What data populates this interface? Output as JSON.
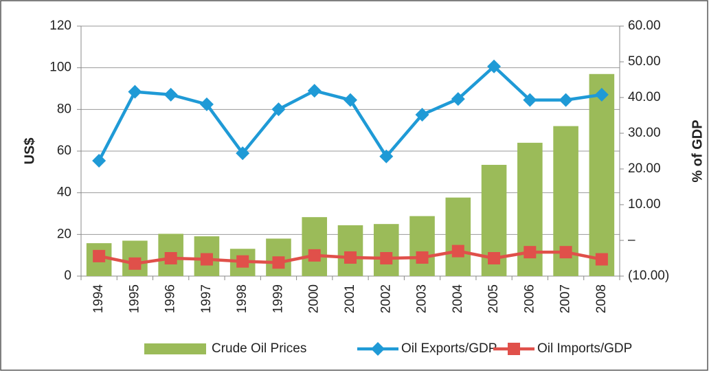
{
  "chart_data": {
    "type": "combo",
    "categories": [
      "1994",
      "1995",
      "1996",
      "1997",
      "1998",
      "1999",
      "2000",
      "2001",
      "2002",
      "2003",
      "2004",
      "2005",
      "2006",
      "2007",
      "2008"
    ],
    "series": [
      {
        "name": "Crude Oil Prices",
        "type": "bar",
        "axis": "y",
        "color": "#9bbb59",
        "values": [
          15.8,
          17,
          20.3,
          19.1,
          13.1,
          18,
          28.3,
          24.4,
          25,
          28.8,
          37.7,
          53.4,
          64,
          72,
          97
        ]
      },
      {
        "name": "Oil Exports/GDP",
        "type": "line",
        "axis": "y2",
        "color": "#1f9ad6",
        "marker": "diamond",
        "values": [
          22.3,
          41.6,
          40.8,
          38.1,
          24.4,
          36.7,
          41.9,
          39.3,
          23.5,
          35.2,
          39.6,
          48.7,
          39.3,
          39.3,
          40.8
        ]
      },
      {
        "name": "Oil Imports/GDP",
        "type": "line",
        "axis": "y2",
        "color": "#e0504a",
        "marker": "square",
        "values": [
          -4.4,
          -6.5,
          -5.0,
          -5.3,
          -5.9,
          -6.2,
          -4.2,
          -4.8,
          -5.0,
          -4.8,
          -3.0,
          -5.0,
          -3.3,
          -3.3,
          -5.3
        ]
      }
    ],
    "ylabel": "US$",
    "y2label": "% of GDP",
    "ylim": [
      0,
      120
    ],
    "yticks": [
      0,
      20,
      40,
      60,
      80,
      100,
      120
    ],
    "y2lim": [
      -10,
      60
    ],
    "y2ticks": [
      {
        "value": -10,
        "label": "(10.00)"
      },
      {
        "value": 0,
        "label": "–"
      },
      {
        "value": 10,
        "label": "10.00"
      },
      {
        "value": 20,
        "label": "20.00"
      },
      {
        "value": 30,
        "label": "30.00"
      },
      {
        "value": 40,
        "label": "40.00"
      },
      {
        "value": 50,
        "label": "50.00"
      },
      {
        "value": 60,
        "label": "60.00"
      }
    ],
    "grid": true,
    "legend": "bottom"
  }
}
